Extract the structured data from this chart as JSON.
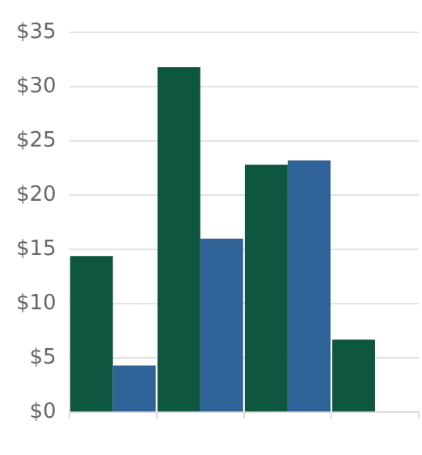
{
  "chart_data": {
    "type": "bar",
    "categories": [
      null,
      null,
      null,
      null
    ],
    "series": [
      {
        "color": "#0f5640",
        "values": [
          14.4,
          31.8,
          22.8,
          6.7
        ]
      },
      {
        "color": "#2f6296",
        "values": [
          4.3,
          16.0,
          23.2,
          null
        ]
      }
    ],
    "ylim": [
      0,
      35
    ],
    "yticks": [
      {
        "value": 0,
        "label": "$0"
      },
      {
        "value": 5,
        "label": "$5"
      },
      {
        "value": 10,
        "label": "$10"
      },
      {
        "value": 15,
        "label": "$15"
      },
      {
        "value": 20,
        "label": "$20"
      },
      {
        "value": 25,
        "label": "$25"
      },
      {
        "value": 30,
        "label": "$30"
      },
      {
        "value": 35,
        "label": "$35"
      }
    ],
    "grid": "y",
    "legend": false
  }
}
